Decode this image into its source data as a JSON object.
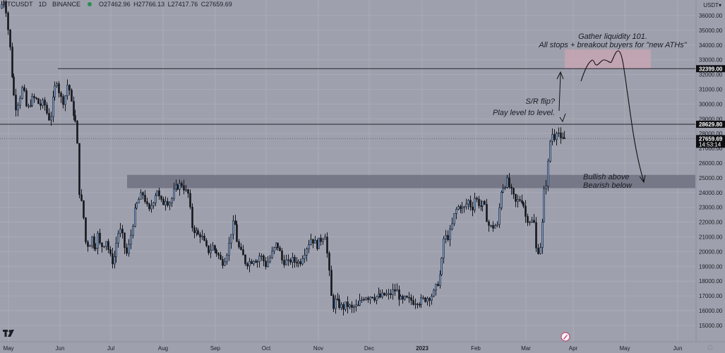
{
  "header": {
    "symbol": "BTCUSDT",
    "interval": "1D",
    "exchange": "BINANCE",
    "open": "O27462.96",
    "high": "H27766.13",
    "low": "L27417.76",
    "close": "C27659.69"
  },
  "chart_data": {
    "type": "candlestick",
    "currency_label": "USDT",
    "ylim": [
      14600,
      36800
    ],
    "y_ticks": [
      15000,
      16000,
      17000,
      18000,
      19000,
      20000,
      21000,
      22000,
      23000,
      24000,
      25000,
      26000,
      27000,
      28000,
      29000,
      30000,
      31000,
      32000,
      33000,
      34000,
      35000,
      36000
    ],
    "x_months": [
      "May",
      "Jun",
      "Jul",
      "Aug",
      "Sep",
      "Oct",
      "Nov",
      "Dec",
      "2023",
      "Feb",
      "Mar",
      "Apr",
      "May",
      "Jun"
    ],
    "price_levels": [
      {
        "label": "32399.00",
        "value": 32399
      },
      {
        "label": "28629.80",
        "value": 28629.8
      }
    ],
    "last_price": {
      "label": "27659.69",
      "value": 27659.69,
      "countdown": "14:53:14"
    },
    "support_zone": [
      24300,
      25200
    ],
    "target_zone": [
      32400,
      33700
    ],
    "annotations": [
      {
        "id": "gather",
        "lines": [
          "Gather liquidity 101.",
          "All stops + breakout buyers for \"new ATHs\""
        ]
      },
      {
        "id": "sr",
        "lines": [
          "S/R flip?",
          "Play level to level."
        ]
      },
      {
        "id": "bull",
        "lines": [
          "Bullish above",
          "Bearish below"
        ]
      }
    ],
    "price_path": [
      [
        0,
        36500
      ],
      [
        6,
        37200
      ],
      [
        10,
        35400
      ],
      [
        14,
        33600
      ],
      [
        18,
        31000
      ],
      [
        22,
        29800
      ],
      [
        26,
        30200
      ],
      [
        32,
        31200
      ],
      [
        38,
        29500
      ],
      [
        44,
        30300
      ],
      [
        50,
        30400
      ],
      [
        56,
        29900
      ],
      [
        62,
        30100
      ],
      [
        68,
        29000
      ],
      [
        72,
        29300
      ],
      [
        76,
        30800
      ],
      [
        80,
        31700
      ],
      [
        84,
        30700
      ],
      [
        88,
        30100
      ],
      [
        92,
        30600
      ],
      [
        96,
        31600
      ],
      [
        100,
        30100
      ],
      [
        104,
        29300
      ],
      [
        108,
        28400
      ],
      [
        110,
        26500
      ],
      [
        112,
        24200
      ],
      [
        114,
        22900
      ],
      [
        116,
        23600
      ],
      [
        118,
        22300
      ],
      [
        120,
        21600
      ],
      [
        122,
        19500
      ],
      [
        124,
        20600
      ],
      [
        126,
        20500
      ],
      [
        130,
        21000
      ],
      [
        134,
        20100
      ],
      [
        138,
        21200
      ],
      [
        142,
        20300
      ],
      [
        146,
        20500
      ],
      [
        150,
        20800
      ],
      [
        154,
        19900
      ],
      [
        158,
        19300
      ],
      [
        162,
        19700
      ],
      [
        166,
        21200
      ],
      [
        170,
        21400
      ],
      [
        174,
        20900
      ],
      [
        178,
        19700
      ],
      [
        182,
        20400
      ],
      [
        186,
        21500
      ],
      [
        190,
        22600
      ],
      [
        194,
        23300
      ],
      [
        198,
        23700
      ],
      [
        202,
        23900
      ],
      [
        206,
        23400
      ],
      [
        210,
        22600
      ],
      [
        214,
        23200
      ],
      [
        218,
        23700
      ],
      [
        222,
        24300
      ],
      [
        226,
        23500
      ],
      [
        230,
        23200
      ],
      [
        234,
        23600
      ],
      [
        238,
        23300
      ],
      [
        242,
        23500
      ],
      [
        246,
        24100
      ],
      [
        250,
        24400
      ],
      [
        254,
        24500
      ],
      [
        258,
        24600
      ],
      [
        262,
        24100
      ],
      [
        266,
        23900
      ],
      [
        268,
        23100
      ],
      [
        270,
        22300
      ],
      [
        272,
        21600
      ],
      [
        276,
        21400
      ],
      [
        280,
        21100
      ],
      [
        284,
        21200
      ],
      [
        288,
        20700
      ],
      [
        292,
        20200
      ],
      [
        296,
        20000
      ],
      [
        300,
        20400
      ],
      [
        304,
        20100
      ],
      [
        308,
        19900
      ],
      [
        312,
        19400
      ],
      [
        316,
        19300
      ],
      [
        320,
        19800
      ],
      [
        324,
        20500
      ],
      [
        328,
        21700
      ],
      [
        332,
        22000
      ],
      [
        336,
        20600
      ],
      [
        340,
        20000
      ],
      [
        344,
        19700
      ],
      [
        348,
        19200
      ],
      [
        352,
        19300
      ],
      [
        356,
        19400
      ],
      [
        360,
        19600
      ],
      [
        364,
        19300
      ],
      [
        368,
        19800
      ],
      [
        372,
        19500
      ],
      [
        376,
        19100
      ],
      [
        380,
        19400
      ],
      [
        384,
        19800
      ],
      [
        388,
        20200
      ],
      [
        392,
        20600
      ],
      [
        396,
        20000
      ],
      [
        400,
        19300
      ],
      [
        404,
        19400
      ],
      [
        408,
        19200
      ],
      [
        412,
        19500
      ],
      [
        416,
        19300
      ],
      [
        420,
        19400
      ],
      [
        424,
        19200
      ],
      [
        428,
        19700
      ],
      [
        432,
        20100
      ],
      [
        436,
        20500
      ],
      [
        440,
        20900
      ],
      [
        444,
        20700
      ],
      [
        448,
        20400
      ],
      [
        452,
        20700
      ],
      [
        456,
        20900
      ],
      [
        460,
        21300
      ],
      [
        462,
        20300
      ],
      [
        464,
        19500
      ],
      [
        466,
        18500
      ],
      [
        468,
        17200
      ],
      [
        470,
        16600
      ],
      [
        472,
        16300
      ],
      [
        474,
        16700
      ],
      [
        478,
        16500
      ],
      [
        482,
        16300
      ],
      [
        486,
        16200
      ],
      [
        490,
        16400
      ],
      [
        494,
        16300
      ],
      [
        498,
        16100
      ],
      [
        502,
        16300
      ],
      [
        506,
        16200
      ],
      [
        510,
        16600
      ],
      [
        514,
        16900
      ],
      [
        518,
        17000
      ],
      [
        522,
        16900
      ],
      [
        526,
        17100
      ],
      [
        530,
        16900
      ],
      [
        534,
        17000
      ],
      [
        538,
        16900
      ],
      [
        542,
        17000
      ],
      [
        546,
        17100
      ],
      [
        550,
        17000
      ],
      [
        554,
        17200
      ],
      [
        558,
        17400
      ],
      [
        562,
        17300
      ],
      [
        566,
        16800
      ],
      [
        570,
        16600
      ],
      [
        574,
        16800
      ],
      [
        578,
        16700
      ],
      [
        582,
        16700
      ],
      [
        586,
        16600
      ],
      [
        590,
        16700
      ],
      [
        594,
        16600
      ],
      [
        598,
        16700
      ],
      [
        602,
        16800
      ],
      [
        606,
        16900
      ],
      [
        610,
        17000
      ],
      [
        614,
        17200
      ],
      [
        618,
        17700
      ],
      [
        622,
        18200
      ],
      [
        626,
        19500
      ],
      [
        628,
        20800
      ],
      [
        630,
        21100
      ],
      [
        632,
        20900
      ],
      [
        636,
        21100
      ],
      [
        640,
        21800
      ],
      [
        644,
        22700
      ],
      [
        648,
        23000
      ],
      [
        652,
        23100
      ],
      [
        656,
        22800
      ],
      [
        660,
        23200
      ],
      [
        664,
        23500
      ],
      [
        668,
        22800
      ],
      [
        672,
        23700
      ],
      [
        676,
        23400
      ],
      [
        680,
        23100
      ],
      [
        684,
        23200
      ],
      [
        688,
        22800
      ],
      [
        690,
        22000
      ],
      [
        692,
        21800
      ],
      [
        696,
        21600
      ],
      [
        700,
        21800
      ],
      [
        704,
        21700
      ],
      [
        706,
        22600
      ],
      [
        708,
        23600
      ],
      [
        710,
        24300
      ],
      [
        714,
        24500
      ],
      [
        718,
        24800
      ],
      [
        722,
        24300
      ],
      [
        726,
        23800
      ],
      [
        730,
        23300
      ],
      [
        734,
        23500
      ],
      [
        738,
        23600
      ],
      [
        742,
        23100
      ],
      [
        744,
        22400
      ],
      [
        748,
        22200
      ],
      [
        752,
        22100
      ],
      [
        756,
        21900
      ],
      [
        758,
        20200
      ],
      [
        762,
        20100
      ],
      [
        764,
        20300
      ],
      [
        766,
        20600
      ],
      [
        768,
        22200
      ],
      [
        770,
        24000
      ],
      [
        772,
        24300
      ],
      [
        774,
        24800
      ],
      [
        776,
        25800
      ],
      [
        778,
        26900
      ],
      [
        780,
        27900
      ],
      [
        782,
        28000
      ],
      [
        786,
        27700
      ],
      [
        788,
        28300
      ],
      [
        790,
        28500
      ],
      [
        792,
        27400
      ],
      [
        794,
        27500
      ],
      [
        796,
        27600
      ],
      [
        798,
        27500
      ],
      [
        800,
        27700
      ]
    ]
  }
}
